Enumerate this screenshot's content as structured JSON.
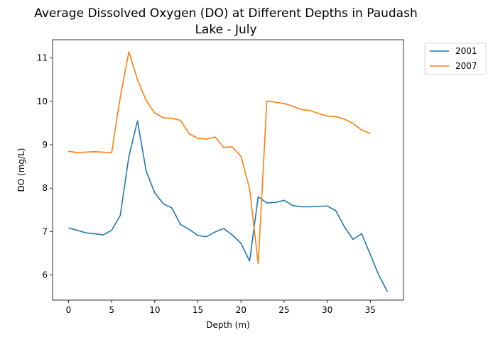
{
  "chart_data": {
    "type": "line",
    "title_lines": [
      "Average Dissolved Oxygen (DO) at Different Depths in Paudash",
      "Lake - July"
    ],
    "xlabel": "Depth (m)",
    "ylabel": "DO (mg/L)",
    "xlim": [
      -1.85,
      38.85
    ],
    "ylim": [
      5.42,
      11.42
    ],
    "xticks": [
      0,
      5,
      10,
      15,
      20,
      25,
      30,
      35
    ],
    "yticks": [
      6,
      7,
      8,
      9,
      10,
      11
    ],
    "grid": false,
    "legend_position": "outside-top-right",
    "series": [
      {
        "name": "2001",
        "color": "#1f77b4",
        "x": [
          0,
          1,
          2,
          3,
          4,
          5,
          6,
          7,
          8,
          9,
          10,
          11,
          12,
          13,
          14,
          15,
          16,
          17,
          18,
          19,
          20,
          21,
          22,
          23,
          24,
          25,
          26,
          27,
          28,
          29,
          30,
          31,
          32,
          33,
          34,
          35,
          36,
          37
        ],
        "y": [
          7.08,
          7.03,
          6.97,
          6.95,
          6.92,
          7.03,
          7.37,
          8.73,
          9.55,
          8.4,
          7.89,
          7.64,
          7.54,
          7.16,
          7.05,
          6.91,
          6.88,
          6.99,
          7.07,
          6.92,
          6.73,
          6.32,
          7.8,
          7.66,
          7.67,
          7.72,
          7.6,
          7.57,
          7.57,
          7.58,
          7.59,
          7.48,
          7.11,
          6.82,
          6.95,
          6.47,
          5.99,
          5.61
        ]
      },
      {
        "name": "2007",
        "color": "#ff7f0e",
        "x": [
          0,
          1,
          2,
          3,
          4,
          5,
          6,
          7,
          8,
          9,
          10,
          11,
          12,
          13,
          14,
          15,
          16,
          17,
          18,
          19,
          20,
          21,
          22,
          23,
          24,
          25,
          26,
          27,
          28,
          29,
          30,
          31,
          32,
          33,
          34,
          35
        ],
        "y": [
          8.85,
          8.82,
          8.83,
          8.84,
          8.83,
          8.81,
          10.1,
          11.14,
          10.5,
          10.02,
          9.73,
          9.62,
          9.61,
          9.56,
          9.25,
          9.15,
          9.13,
          9.18,
          8.94,
          8.95,
          8.73,
          7.99,
          6.26,
          10.01,
          9.98,
          9.95,
          9.89,
          9.81,
          9.79,
          9.72,
          9.66,
          9.65,
          9.59,
          9.49,
          9.34,
          9.26
        ]
      }
    ]
  }
}
